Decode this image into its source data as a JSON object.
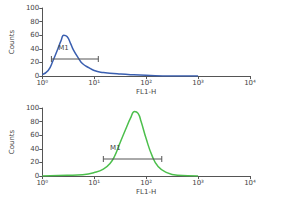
{
  "chart_data": [
    {
      "type": "line",
      "color": "#3a5fb0",
      "log": "x",
      "xlabel": "FL1-H",
      "ylabel": "Counts",
      "x": [
        1,
        1.3,
        1.6,
        2,
        2.3,
        2.6,
        3,
        3.5,
        4,
        5,
        6,
        8,
        10,
        15,
        20,
        30,
        50,
        100,
        300,
        1000
      ],
      "values": [
        2,
        8,
        22,
        40,
        52,
        60,
        58,
        48,
        38,
        26,
        18,
        12,
        8,
        5,
        4,
        3,
        2,
        1,
        0,
        0
      ],
      "xlim": [
        1,
        10000
      ],
      "xticks": [
        {
          "value": 1,
          "label": "10⁰"
        },
        {
          "value": 10,
          "label": "10¹"
        },
        {
          "value": 100,
          "label": "10²"
        },
        {
          "value": 1000,
          "label": "10³"
        },
        {
          "value": 10000,
          "label": "10⁴"
        }
      ],
      "ylim": [
        0,
        100
      ],
      "yticks": [
        0,
        20,
        40,
        60,
        80,
        100
      ],
      "annotations": [
        {
          "text": "M1",
          "x": [
            1.5,
            12
          ],
          "y": 25
        }
      ]
    },
    {
      "type": "line",
      "color": "#4cbf4c",
      "log": "x",
      "xlabel": "FL1-H",
      "ylabel": "Counts",
      "x": [
        1,
        3,
        6,
        10,
        15,
        20,
        25,
        30,
        40,
        50,
        60,
        70,
        80,
        100,
        130,
        170,
        250,
        400,
        1000
      ],
      "values": [
        0,
        1,
        2,
        5,
        10,
        18,
        30,
        45,
        68,
        85,
        95,
        92,
        80,
        55,
        30,
        14,
        5,
        1,
        0
      ],
      "xlim": [
        1,
        10000
      ],
      "xticks": [
        {
          "value": 1,
          "label": "10⁰"
        },
        {
          "value": 10,
          "label": "10¹"
        },
        {
          "value": 100,
          "label": "10²"
        },
        {
          "value": 1000,
          "label": "10³"
        },
        {
          "value": 10000,
          "label": "10⁴"
        }
      ],
      "ylim": [
        0,
        100
      ],
      "yticks": [
        0,
        20,
        40,
        60,
        80,
        100
      ],
      "annotations": [
        {
          "text": "M1",
          "x": [
            15,
            200
          ],
          "y": 25
        }
      ]
    }
  ]
}
